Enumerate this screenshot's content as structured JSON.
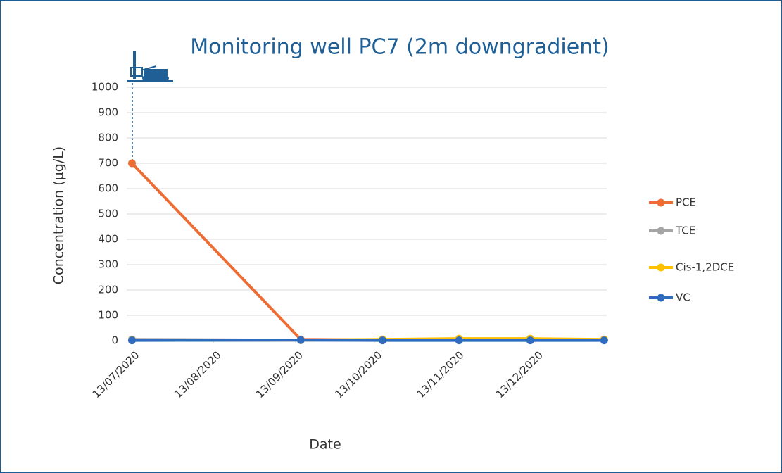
{
  "chart_data": {
    "type": "line",
    "title": "Monitoring well PC7 (2m downgradient)",
    "x_label": "Date",
    "y_label": "Concentration (µg/L)",
    "x": [
      "2020-07-13",
      "2020-09-15",
      "2020-10-16",
      "2020-11-14",
      "2020-12-11",
      "2021-01-08"
    ],
    "series": [
      {
        "name": "PCE",
        "color": "#ed6d35",
        "values": [
          700,
          5,
          3,
          3,
          3,
          3
        ]
      },
      {
        "name": "TCE",
        "color": "#a5a5a5",
        "values": [
          5,
          2,
          2,
          2,
          2,
          2
        ]
      },
      {
        "name": "Cis-1,2DCE",
        "color": "#ffc000",
        "values": [
          2,
          2,
          5,
          8,
          8,
          5
        ]
      },
      {
        "name": "VC",
        "color": "#2f6cc0",
        "values": [
          1,
          2,
          1,
          1,
          1,
          1
        ]
      }
    ],
    "xlim": [
      "2020-07-11",
      "2021-01-09"
    ],
    "xticks": [
      {
        "value": "2020-07-13",
        "label": "13/07/2020"
      },
      {
        "value": "2020-08-13",
        "label": "13/08/2020"
      },
      {
        "value": "2020-09-13",
        "label": "13/09/2020"
      },
      {
        "value": "2020-10-13",
        "label": "13/10/2020"
      },
      {
        "value": "2020-11-13",
        "label": "13/11/2020"
      },
      {
        "value": "2020-12-13",
        "label": "13/12/2020"
      }
    ],
    "ylim": [
      0,
      1000
    ],
    "yticks": [
      0,
      100,
      200,
      300,
      400,
      500,
      600,
      700,
      800,
      900,
      1000
    ],
    "grid": true,
    "legend": "right"
  }
}
